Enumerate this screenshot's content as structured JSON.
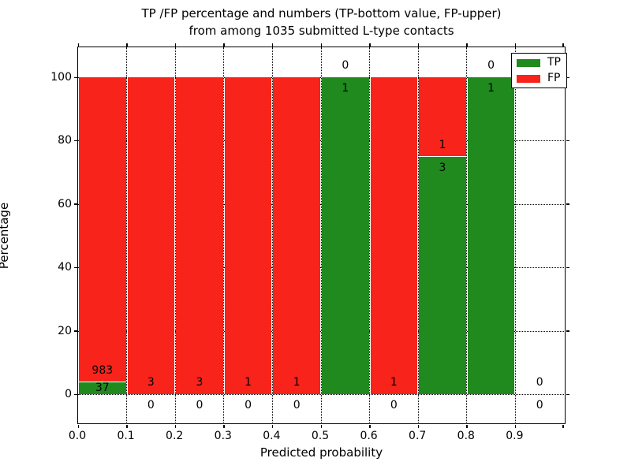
{
  "title": {
    "line1": "TP /FP percentage and numbers (TP-bottom value, FP-upper)",
    "line2": "from among 1035 submitted L-type contacts"
  },
  "axes": {
    "xlabel": "Predicted probability",
    "ylabel": "Percentage",
    "x_tick_labels": [
      "0.0",
      "0.1",
      "0.2",
      "0.3",
      "0.4",
      "0.5",
      "0.6",
      "0.7",
      "0.8",
      "0.9"
    ],
    "y_tick_labels": [
      "0",
      "20",
      "40",
      "60",
      "80",
      "100"
    ]
  },
  "legend": {
    "items": [
      {
        "label": "TP",
        "color": "#208a1f"
      },
      {
        "label": "FP",
        "color": "#f8231a"
      }
    ]
  },
  "chart_data": {
    "type": "bar",
    "stacked": true,
    "normalized": "each bin scaled to 100%",
    "title": "TP /FP percentage and numbers (TP-bottom value, FP-upper) from among 1035 submitted L-type contacts",
    "xlabel": "Predicted probability",
    "ylabel": "Percentage",
    "categories": [
      "0.0-0.1",
      "0.1-0.2",
      "0.2-0.3",
      "0.3-0.4",
      "0.4-0.5",
      "0.5-0.6",
      "0.6-0.7",
      "0.7-0.8",
      "0.8-0.9",
      "0.9-1.0"
    ],
    "series": [
      {
        "name": "TP",
        "color": "#208a1f",
        "counts": [
          37,
          0,
          0,
          0,
          0,
          1,
          0,
          3,
          1,
          0
        ]
      },
      {
        "name": "FP",
        "color": "#f8231a",
        "counts": [
          983,
          3,
          3,
          1,
          1,
          0,
          1,
          1,
          0,
          0
        ]
      }
    ],
    "total_contacts": 1035,
    "x_ticks": [
      0.0,
      0.1,
      0.2,
      0.3,
      0.4,
      0.5,
      0.6,
      0.7,
      0.8,
      0.9
    ],
    "y_ticks": [
      0,
      20,
      40,
      60,
      80,
      100
    ],
    "xlim": [
      0.0,
      1.0
    ],
    "ylim": [
      -9.5,
      109.7
    ],
    "grid": "dotted both axes",
    "legend_position": "upper right",
    "annotation_rule": "TP count printed below TP/FP boundary, FP count printed above it"
  }
}
